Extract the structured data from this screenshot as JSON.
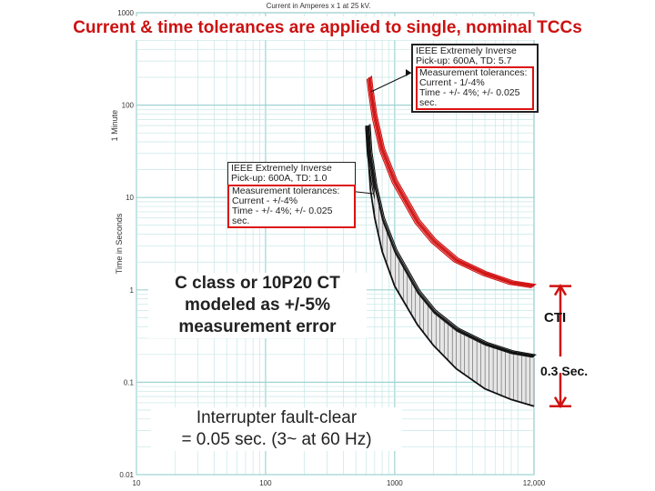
{
  "slide": {
    "title": "Current & time tolerances are applied to single, nominal TCCs"
  },
  "callouts": {
    "red_curve": {
      "line1": "IEEE Extremely Inverse",
      "line2": "Pick-up: 600A, TD: 5.7",
      "line3": "Measurement tolerances:",
      "line4": "Current - 1/-4%",
      "line5": "Time - +/- 4%; +/- 0.025 sec."
    },
    "black_curve": {
      "line1": "IEEE Extremely Inverse",
      "line2": "Pick-up: 600A, TD: 1.0",
      "line3": "Measurement tolerances:",
      "line4": "Current - +/-4%",
      "line5": "Time - +/- 4%; +/- 0.025 sec."
    },
    "ct_note": {
      "line1": "C class or 10P20 CT",
      "line2": "modeled as +/-5%",
      "line3": "measurement error"
    },
    "interrupter_note": {
      "line1": "Interrupter fault-clear",
      "line2": "= 0.05 sec. (3~ at 60 Hz)"
    },
    "cti": "CTI",
    "cti_value": "0.3 Sec."
  },
  "colors": {
    "red": "#d11111",
    "black_curve": "#111111",
    "grid_minor": "#c8e6e6",
    "grid_major": "#9fd3d3"
  },
  "chart_data": {
    "type": "line",
    "title": "Current & time tolerances are applied to single, nominal TCCs",
    "xlabel": "Current in Amperes x 1 at 25 kV.",
    "ylabel": "Time in Seconds",
    "x_scale": "log",
    "y_scale": "log",
    "xlim": [
      10,
      12000
    ],
    "ylim": [
      0.01,
      1000
    ],
    "x_tick_labels": [
      "10",
      "100",
      "1000",
      "12,000"
    ],
    "y_tick_labels": [
      "0.01",
      "0.1",
      "1",
      "10",
      "100",
      "1000"
    ],
    "y_side_label": "1 Minute",
    "grid": true,
    "series": [
      {
        "color": "#d11111",
        "band": "measurement tolerance",
        "pickup_A": 600,
        "time_dial": 5.7,
        "x": [
          636,
          650,
          700,
          800,
          1000,
          1500,
          2000,
          3000,
          5000,
          8000,
          12000
        ],
        "y": [
          200,
          150,
          75,
          33,
          15,
          5.5,
          3.4,
          2.1,
          1.5,
          1.2,
          1.1
        ]
      },
      {
        "color": "#111111",
        "band": "measurement tolerance",
        "pickup_A": 600,
        "time_dial": 1.0,
        "x": [
          620,
          640,
          700,
          800,
          1000,
          1500,
          2000,
          3000,
          5000,
          8000,
          12000
        ],
        "y": [
          60,
          30,
          13,
          5.8,
          2.6,
          0.95,
          0.58,
          0.37,
          0.26,
          0.21,
          0.19
        ]
      },
      {
        "color": "#111111",
        "band": "interrupter fault-clear",
        "x": [
          600,
          650,
          700,
          800,
          1000,
          1500,
          2000,
          3000,
          5000,
          8000,
          12000
        ],
        "y": [
          60,
          12,
          6,
          2.6,
          1.1,
          0.42,
          0.25,
          0.14,
          0.085,
          0.065,
          0.055
        ]
      }
    ]
  }
}
